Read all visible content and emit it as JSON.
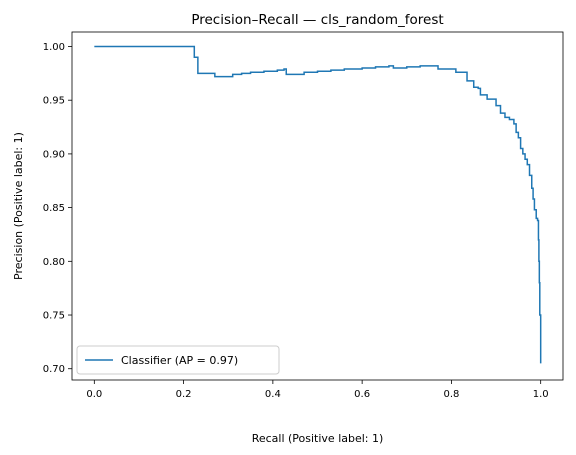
{
  "chart_data": {
    "type": "line",
    "drawstyle": "steps-post",
    "title": "Precision–Recall — cls_random_forest",
    "xlabel": "Recall (Positive label: 1)",
    "ylabel": "Precision (Positive label: 1)",
    "xlim": [
      -0.05,
      1.05
    ],
    "ylim": [
      0.6895,
      1.0135
    ],
    "x_ticks": [
      0.0,
      0.2,
      0.4,
      0.6,
      0.8,
      1.0
    ],
    "x_tick_labels": [
      "0.0",
      "0.2",
      "0.4",
      "0.6",
      "0.8",
      "1.0"
    ],
    "y_ticks": [
      0.7,
      0.75,
      0.8,
      0.85,
      0.9,
      0.95,
      1.0
    ],
    "y_tick_labels": [
      "0.70",
      "0.75",
      "0.80",
      "0.85",
      "0.90",
      "0.95",
      "1.00"
    ],
    "grid": false,
    "legend_position": "lower-left",
    "series": [
      {
        "name": "Classifier (AP = 0.97)",
        "color": "#1f77b4",
        "points": [
          [
            0.0,
            1.0
          ],
          [
            0.224,
            1.0
          ],
          [
            0.224,
            0.99
          ],
          [
            0.232,
            0.99
          ],
          [
            0.232,
            0.975
          ],
          [
            0.27,
            0.975
          ],
          [
            0.27,
            0.972
          ],
          [
            0.3,
            0.972
          ],
          [
            0.31,
            0.974
          ],
          [
            0.33,
            0.975
          ],
          [
            0.35,
            0.976
          ],
          [
            0.38,
            0.977
          ],
          [
            0.41,
            0.978
          ],
          [
            0.425,
            0.979
          ],
          [
            0.43,
            0.974
          ],
          [
            0.47,
            0.976
          ],
          [
            0.5,
            0.977
          ],
          [
            0.53,
            0.978
          ],
          [
            0.56,
            0.979
          ],
          [
            0.6,
            0.98
          ],
          [
            0.63,
            0.981
          ],
          [
            0.66,
            0.982
          ],
          [
            0.67,
            0.98
          ],
          [
            0.7,
            0.981
          ],
          [
            0.73,
            0.982
          ],
          [
            0.765,
            0.982
          ],
          [
            0.77,
            0.979
          ],
          [
            0.8,
            0.979
          ],
          [
            0.81,
            0.976
          ],
          [
            0.835,
            0.976
          ],
          [
            0.835,
            0.968
          ],
          [
            0.85,
            0.962
          ],
          [
            0.86,
            0.961
          ],
          [
            0.865,
            0.955
          ],
          [
            0.875,
            0.955
          ],
          [
            0.88,
            0.951
          ],
          [
            0.895,
            0.951
          ],
          [
            0.9,
            0.945
          ],
          [
            0.91,
            0.938
          ],
          [
            0.92,
            0.934
          ],
          [
            0.93,
            0.932
          ],
          [
            0.94,
            0.928
          ],
          [
            0.945,
            0.92
          ],
          [
            0.95,
            0.915
          ],
          [
            0.955,
            0.905
          ],
          [
            0.96,
            0.9
          ],
          [
            0.965,
            0.895
          ],
          [
            0.97,
            0.89
          ],
          [
            0.975,
            0.88
          ],
          [
            0.98,
            0.868
          ],
          [
            0.983,
            0.858
          ],
          [
            0.986,
            0.848
          ],
          [
            0.99,
            0.84
          ],
          [
            0.993,
            0.838
          ],
          [
            0.995,
            0.82
          ],
          [
            0.996,
            0.8
          ],
          [
            0.997,
            0.78
          ],
          [
            0.998,
            0.75
          ],
          [
            1.0,
            0.705
          ]
        ]
      }
    ]
  }
}
